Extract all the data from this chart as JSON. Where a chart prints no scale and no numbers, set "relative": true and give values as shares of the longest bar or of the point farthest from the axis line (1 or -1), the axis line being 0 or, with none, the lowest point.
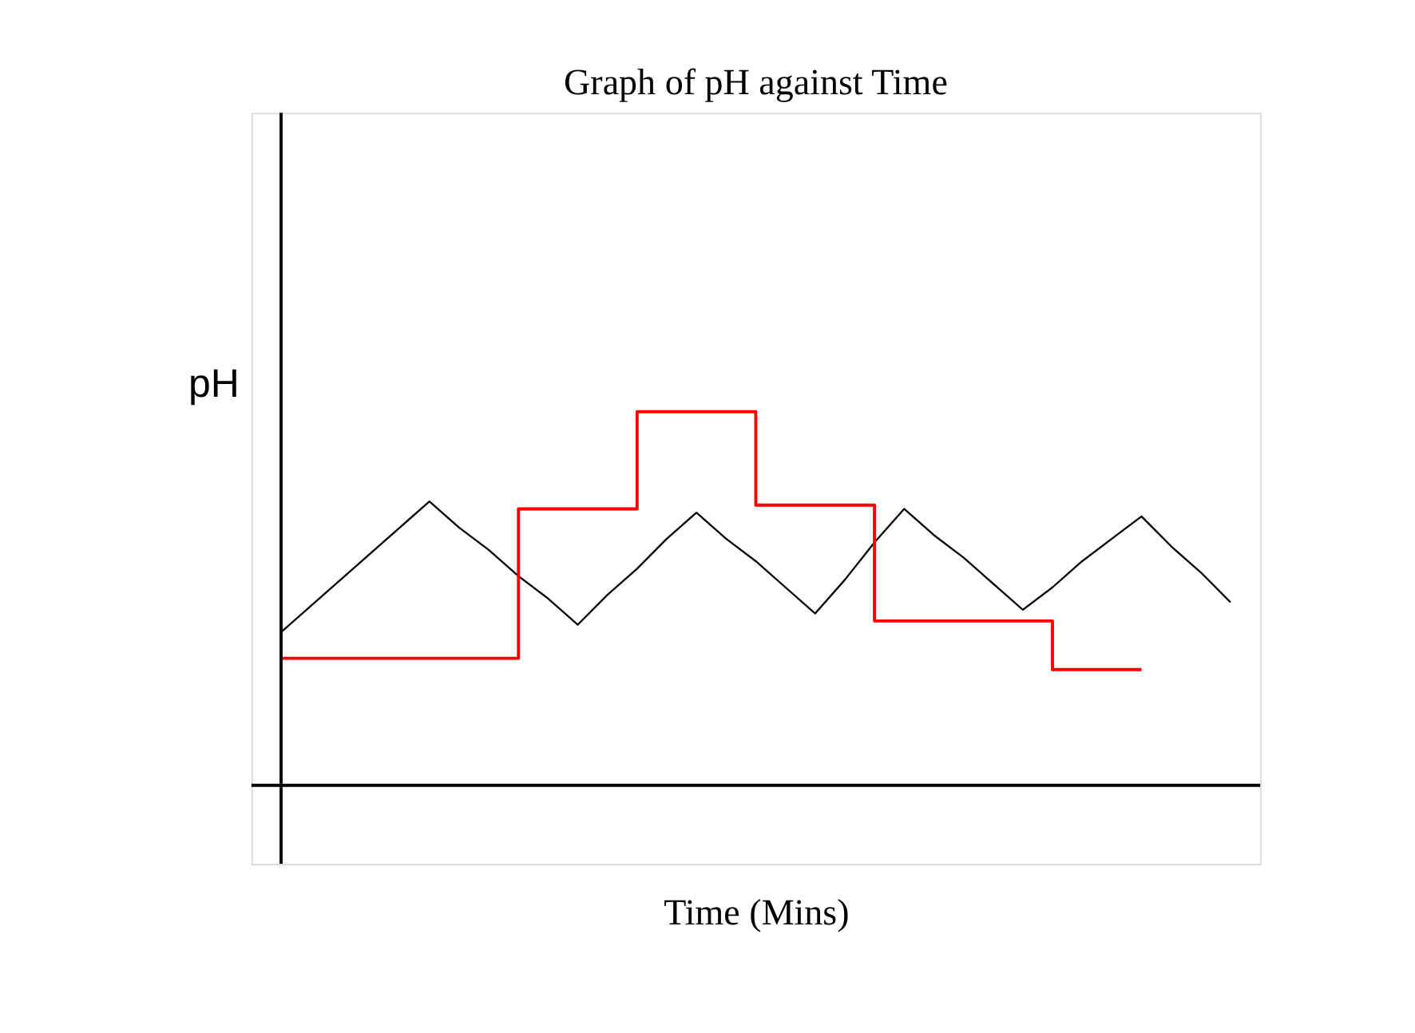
{
  "chart_data": {
    "type": "line",
    "title": "Graph of pH against Time",
    "xlabel": "Time (Mins)",
    "ylabel": "pH",
    "relative": true,
    "tick_labels": false,
    "marker": "none",
    "line_style": "solid",
    "categories": [
      null,
      null,
      null,
      null,
      null,
      null,
      null,
      null,
      null,
      null,
      null,
      null,
      null,
      null,
      null,
      null,
      null,
      null,
      null,
      null,
      null,
      null,
      null,
      null,
      null,
      null,
      null,
      null,
      null,
      null,
      null,
      null,
      null
    ],
    "series": [
      {
        "color": "#000000",
        "values": [
          0.41,
          0.48,
          0.55,
          0.62,
          0.69,
          0.76,
          0.69,
          0.63,
          0.56,
          0.5,
          0.43,
          0.51,
          0.58,
          0.66,
          0.73,
          0.66,
          0.6,
          0.53,
          0.46,
          0.55,
          0.65,
          0.74,
          0.67,
          0.61,
          0.54,
          0.47,
          0.53,
          0.6,
          0.66,
          0.72,
          0.64,
          0.57,
          0.49
        ]
      },
      {
        "type": "step",
        "color": "#ff0000",
        "values": [
          0.34,
          0.34,
          0.34,
          0.34,
          0.34,
          0.34,
          0.34,
          0.34,
          0.74,
          0.74,
          0.74,
          0.74,
          1,
          1,
          1,
          1,
          0.75,
          0.75,
          0.75,
          0.75,
          0.44,
          0.44,
          0.44,
          0.44,
          0.44,
          0.44,
          0.31,
          0.31,
          0.31,
          0.31,
          null,
          null,
          null
        ]
      }
    ]
  }
}
